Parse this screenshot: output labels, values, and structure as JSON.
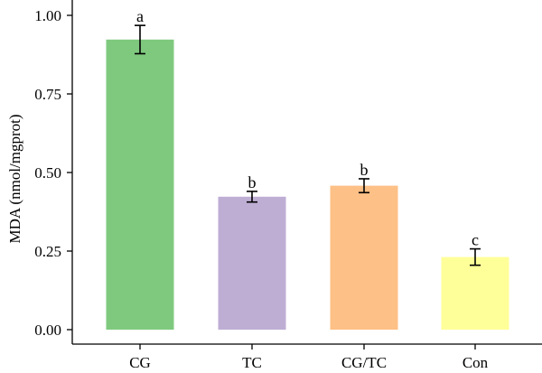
{
  "chart_data": {
    "type": "bar",
    "title": "",
    "xlabel": "",
    "ylabel": "MDA (nmol/mgprot)",
    "ylim": [
      0,
      1.0
    ],
    "yticks": [
      "0.00",
      "0.25",
      "0.50",
      "0.75",
      "1.00"
    ],
    "categories": [
      "CG",
      "TC",
      "CG/TC",
      "Con"
    ],
    "values": [
      0.923,
      0.423,
      0.458,
      0.231
    ],
    "errors": [
      0.045,
      0.017,
      0.022,
      0.026
    ],
    "significance_labels": [
      "a",
      "b",
      "b",
      "c"
    ],
    "colors": [
      "#7fc97f",
      "#beaed4",
      "#fdc086",
      "#ffff99"
    ],
    "grid": false,
    "legend": "none"
  }
}
